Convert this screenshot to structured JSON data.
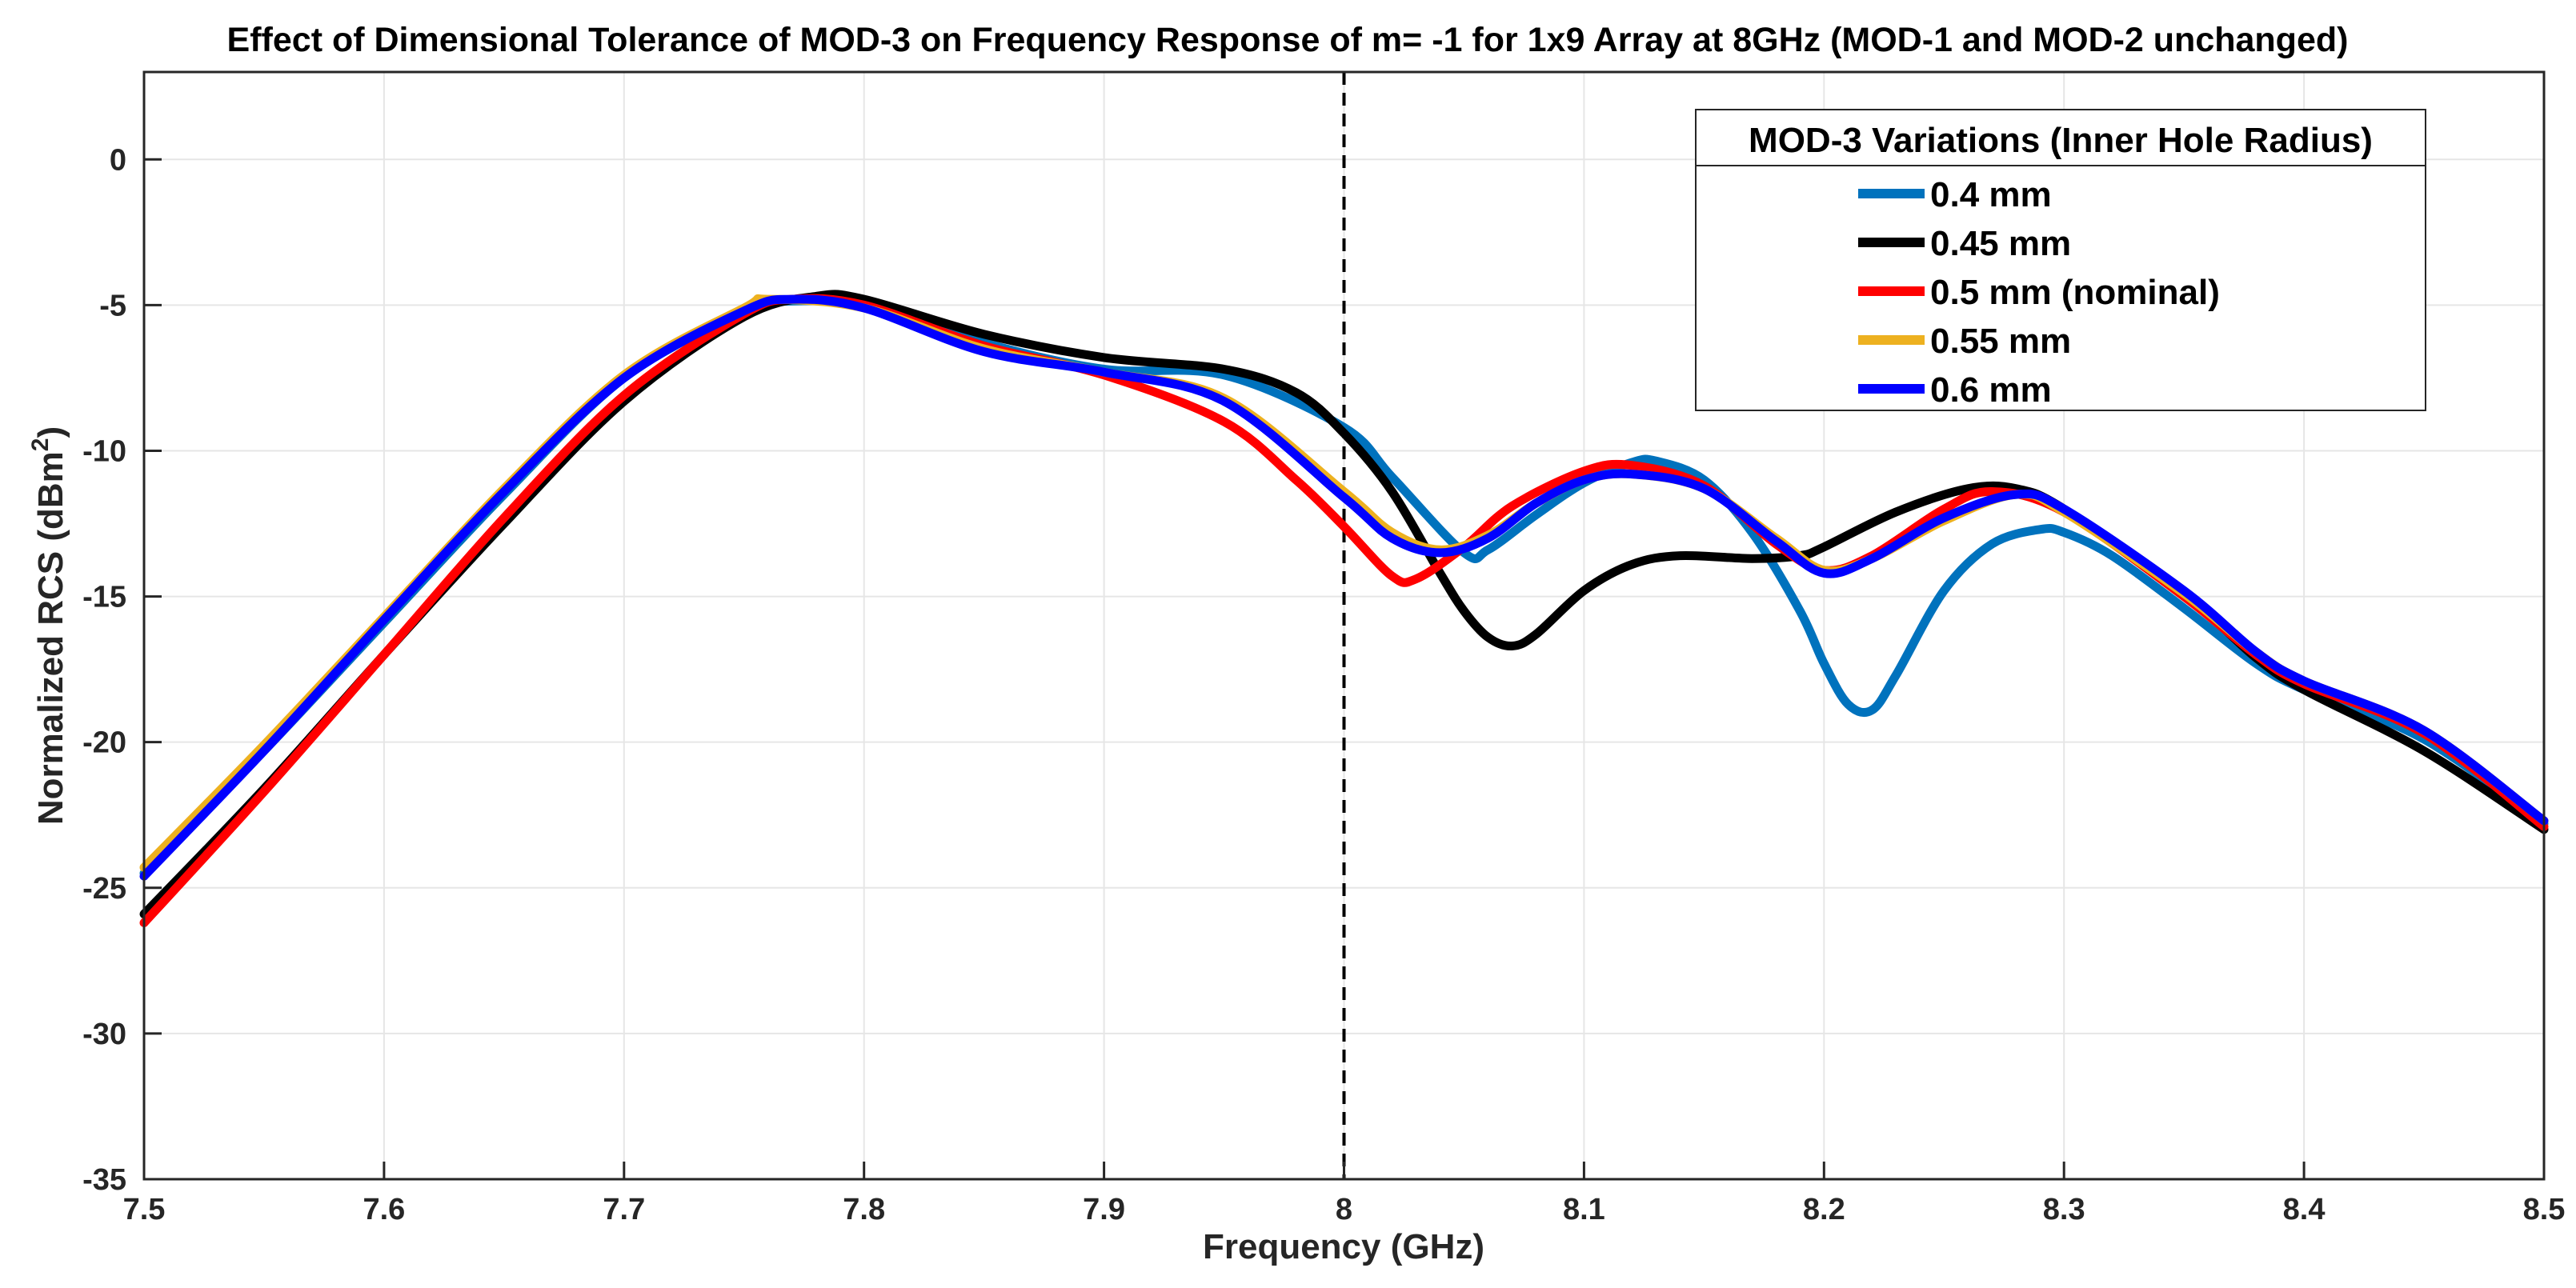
{
  "chart_data": {
    "type": "line",
    "title": "Effect of Dimensional Tolerance of MOD-3 on Frequency Response of m= -1 for 1x9 Array at 8GHz (MOD-1 and MOD-2 unchanged)",
    "xlabel": "Frequency (GHz)",
    "ylabel_main": "Normalized RCS (dBm",
    "ylabel_sup": "2",
    "ylabel_close": ")",
    "xlim": [
      7.5,
      8.5
    ],
    "ylim": [
      -35,
      3
    ],
    "xticks": [
      7.5,
      7.6,
      7.7,
      7.8,
      7.9,
      8,
      8.1,
      8.2,
      8.3,
      8.4,
      8.5
    ],
    "xtick_labels": [
      "7.5",
      "7.6",
      "7.7",
      "7.8",
      "7.9",
      "8",
      "8.1",
      "8.2",
      "8.3",
      "8.4",
      "8.5"
    ],
    "yticks": [
      0,
      -5,
      -10,
      -15,
      -20,
      -25,
      -30,
      -35
    ],
    "ytick_labels": [
      "0",
      "-5",
      "-10",
      "-15",
      "-20",
      "-25",
      "-30",
      "-35"
    ],
    "grid": true,
    "vline": {
      "x": 8.0,
      "style": "dashed",
      "color": "#000000"
    },
    "legend": {
      "title": "MOD-3 Variations (Inner Hole Radius)",
      "location": "top-right"
    },
    "series": [
      {
        "name": "0.4 mm",
        "color": "#0072bd",
        "points": [
          [
            7.5,
            -24.5
          ],
          [
            7.55,
            -20.3
          ],
          [
            7.6,
            -15.9
          ],
          [
            7.65,
            -11.5
          ],
          [
            7.7,
            -7.5
          ],
          [
            7.75,
            -5.2
          ],
          [
            7.76,
            -4.9
          ],
          [
            7.8,
            -5.0
          ],
          [
            7.85,
            -6.3
          ],
          [
            7.9,
            -7.2
          ],
          [
            7.95,
            -7.4
          ],
          [
            8.0,
            -9.2
          ],
          [
            8.02,
            -10.9
          ],
          [
            8.05,
            -13.5
          ],
          [
            8.06,
            -13.4
          ],
          [
            8.08,
            -12.2
          ],
          [
            8.1,
            -11.1
          ],
          [
            8.12,
            -10.4
          ],
          [
            8.13,
            -10.35
          ],
          [
            8.15,
            -11.0
          ],
          [
            8.17,
            -12.8
          ],
          [
            8.19,
            -15.5
          ],
          [
            8.2,
            -17.3
          ],
          [
            8.21,
            -18.7
          ],
          [
            8.22,
            -18.9
          ],
          [
            8.23,
            -17.7
          ],
          [
            8.25,
            -14.8
          ],
          [
            8.27,
            -13.2
          ],
          [
            8.29,
            -12.7
          ],
          [
            8.3,
            -12.8
          ],
          [
            8.32,
            -13.6
          ],
          [
            8.35,
            -15.4
          ],
          [
            8.38,
            -17.3
          ],
          [
            8.4,
            -18.2
          ],
          [
            8.45,
            -19.9
          ],
          [
            8.5,
            -22.8
          ]
        ]
      },
      {
        "name": "0.45 mm",
        "color": "#000000",
        "points": [
          [
            7.5,
            -25.9
          ],
          [
            7.55,
            -21.6
          ],
          [
            7.6,
            -17.0
          ],
          [
            7.65,
            -12.5
          ],
          [
            7.7,
            -8.3
          ],
          [
            7.75,
            -5.4
          ],
          [
            7.78,
            -4.7
          ],
          [
            7.8,
            -4.8
          ],
          [
            7.85,
            -6.0
          ],
          [
            7.9,
            -6.8
          ],
          [
            7.95,
            -7.2
          ],
          [
            7.98,
            -8.0
          ],
          [
            8.0,
            -9.4
          ],
          [
            8.02,
            -11.4
          ],
          [
            8.04,
            -14.2
          ],
          [
            8.05,
            -15.5
          ],
          [
            8.06,
            -16.4
          ],
          [
            8.07,
            -16.7
          ],
          [
            8.08,
            -16.3
          ],
          [
            8.1,
            -14.8
          ],
          [
            8.12,
            -13.9
          ],
          [
            8.14,
            -13.6
          ],
          [
            8.17,
            -13.7
          ],
          [
            8.19,
            -13.6
          ],
          [
            8.2,
            -13.3
          ],
          [
            8.23,
            -12.1
          ],
          [
            8.26,
            -11.3
          ],
          [
            8.28,
            -11.3
          ],
          [
            8.3,
            -12.0
          ],
          [
            8.35,
            -14.9
          ],
          [
            8.38,
            -17.1
          ],
          [
            8.4,
            -18.2
          ],
          [
            8.45,
            -20.3
          ],
          [
            8.5,
            -23.0
          ]
        ]
      },
      {
        "name": "0.5 mm (nominal)",
        "color": "#ff0000",
        "points": [
          [
            7.5,
            -26.2
          ],
          [
            7.55,
            -21.7
          ],
          [
            7.6,
            -17.0
          ],
          [
            7.65,
            -12.3
          ],
          [
            7.7,
            -8.1
          ],
          [
            7.75,
            -5.3
          ],
          [
            7.77,
            -4.8
          ],
          [
            7.8,
            -5.0
          ],
          [
            7.85,
            -6.4
          ],
          [
            7.9,
            -7.4
          ],
          [
            7.95,
            -9.0
          ],
          [
            7.98,
            -11.0
          ],
          [
            8.0,
            -12.6
          ],
          [
            8.02,
            -14.3
          ],
          [
            8.03,
            -14.4
          ],
          [
            8.05,
            -13.3
          ],
          [
            8.07,
            -11.9
          ],
          [
            8.1,
            -10.7
          ],
          [
            8.12,
            -10.5
          ],
          [
            8.15,
            -11.2
          ],
          [
            8.18,
            -13.2
          ],
          [
            8.2,
            -14.1
          ],
          [
            8.22,
            -13.6
          ],
          [
            8.25,
            -12.0
          ],
          [
            8.27,
            -11.4
          ],
          [
            8.3,
            -12.1
          ],
          [
            8.35,
            -15.0
          ],
          [
            8.38,
            -17.0
          ],
          [
            8.4,
            -18.0
          ],
          [
            8.45,
            -19.7
          ],
          [
            8.5,
            -22.9
          ]
        ]
      },
      {
        "name": "0.55 mm",
        "color": "#edb120",
        "points": [
          [
            7.5,
            -24.3
          ],
          [
            7.55,
            -20.1
          ],
          [
            7.6,
            -15.7
          ],
          [
            7.65,
            -11.3
          ],
          [
            7.7,
            -7.4
          ],
          [
            7.75,
            -5.1
          ],
          [
            7.76,
            -4.8
          ],
          [
            7.8,
            -5.1
          ],
          [
            7.85,
            -6.5
          ],
          [
            7.9,
            -7.3
          ],
          [
            7.95,
            -8.2
          ],
          [
            8.0,
            -11.4
          ],
          [
            8.02,
            -12.8
          ],
          [
            8.04,
            -13.4
          ],
          [
            8.06,
            -12.9
          ],
          [
            8.08,
            -11.8
          ],
          [
            8.1,
            -11.0
          ],
          [
            8.12,
            -10.8
          ],
          [
            8.15,
            -11.3
          ],
          [
            8.18,
            -13.0
          ],
          [
            8.2,
            -14.1
          ],
          [
            8.22,
            -13.7
          ],
          [
            8.25,
            -12.4
          ],
          [
            8.28,
            -11.5
          ],
          [
            8.3,
            -12.1
          ],
          [
            8.35,
            -14.9
          ],
          [
            8.38,
            -16.9
          ],
          [
            8.4,
            -17.9
          ],
          [
            8.45,
            -19.6
          ],
          [
            8.5,
            -22.7
          ]
        ]
      },
      {
        "name": "0.6 mm",
        "color": "#0000ff",
        "points": [
          [
            7.5,
            -24.6
          ],
          [
            7.55,
            -20.3
          ],
          [
            7.6,
            -15.8
          ],
          [
            7.65,
            -11.4
          ],
          [
            7.7,
            -7.5
          ],
          [
            7.75,
            -5.2
          ],
          [
            7.77,
            -4.8
          ],
          [
            7.8,
            -5.1
          ],
          [
            7.85,
            -6.6
          ],
          [
            7.9,
            -7.3
          ],
          [
            7.95,
            -8.3
          ],
          [
            8.0,
            -11.6
          ],
          [
            8.02,
            -13.0
          ],
          [
            8.04,
            -13.5
          ],
          [
            8.06,
            -13.0
          ],
          [
            8.08,
            -11.8
          ],
          [
            8.1,
            -11.0
          ],
          [
            8.12,
            -10.8
          ],
          [
            8.15,
            -11.3
          ],
          [
            8.18,
            -13.1
          ],
          [
            8.2,
            -14.2
          ],
          [
            8.22,
            -13.7
          ],
          [
            8.25,
            -12.3
          ],
          [
            8.28,
            -11.5
          ],
          [
            8.3,
            -12.0
          ],
          [
            8.35,
            -14.8
          ],
          [
            8.38,
            -16.9
          ],
          [
            8.4,
            -17.9
          ],
          [
            8.45,
            -19.6
          ],
          [
            8.5,
            -22.7
          ]
        ]
      }
    ]
  }
}
